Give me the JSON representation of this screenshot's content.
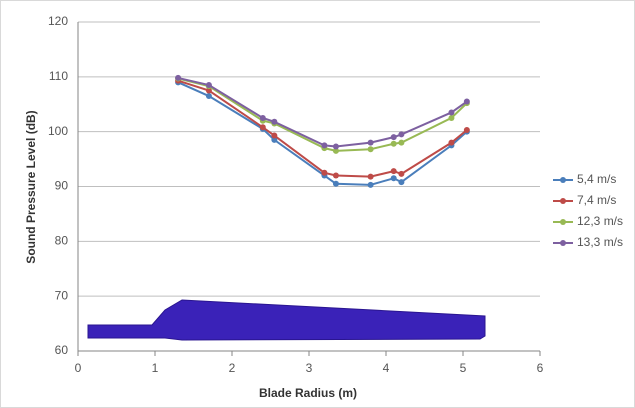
{
  "chart_data": {
    "type": "line",
    "x_label": "Blade Radius (m)",
    "y_label": "Sound Pressure Level (dB)",
    "x": [
      1.3,
      1.7,
      2.4,
      2.55,
      3.2,
      3.35,
      3.8,
      4.1,
      4.2,
      4.85,
      5.05
    ],
    "series": [
      {
        "name": "5,4 m/s",
        "color": "#4a7ebb",
        "values": [
          109,
          106.5,
          100.5,
          98.5,
          92,
          90.5,
          90.3,
          91.5,
          90.8,
          97.5,
          100
        ]
      },
      {
        "name": "7,4 m/s",
        "color": "#be4b48",
        "values": [
          109.3,
          107.5,
          100.8,
          99.3,
          92.5,
          92,
          91.8,
          92.8,
          92.3,
          98,
          100.3
        ]
      },
      {
        "name": "12,3 m/s",
        "color": "#98b954",
        "values": [
          109.7,
          108.3,
          102,
          101.5,
          97,
          96.5,
          96.8,
          97.8,
          98,
          102.5,
          105.2
        ]
      },
      {
        "name": "13,3 m/s",
        "color": "#7d60a0",
        "values": [
          109.8,
          108.5,
          102.5,
          101.8,
          97.5,
          97.3,
          98,
          99,
          99.5,
          103.5,
          105.5
        ]
      }
    ],
    "xlim": [
      0,
      6
    ],
    "xticks": [
      0,
      1,
      2,
      3,
      4,
      5,
      6
    ],
    "ylim": [
      60,
      120
    ],
    "yticks": [
      60,
      70,
      80,
      90,
      100,
      110,
      120
    ],
    "grid": true,
    "legend": "right"
  }
}
